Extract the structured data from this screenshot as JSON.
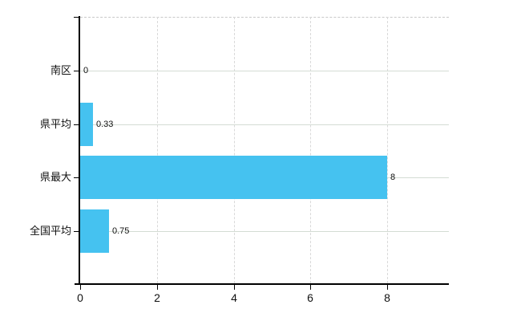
{
  "chart_data": {
    "type": "bar",
    "orientation": "horizontal",
    "title": "",
    "xlabel": "",
    "ylabel": "",
    "categories": [
      "南区",
      "県平均",
      "県最大",
      "全国平均"
    ],
    "values": [
      0,
      0.33,
      8,
      0.75
    ],
    "value_labels": [
      "0",
      "0.33",
      "8",
      "0.75"
    ],
    "x_ticks": [
      0,
      2,
      4,
      6,
      8
    ],
    "x_tick_labels": [
      "0",
      "2",
      "4",
      "6",
      "8"
    ],
    "xlim": [
      0,
      9.6
    ],
    "grid": {
      "vertical_style": "dashed",
      "horizontal_style": "solid",
      "top_border_style": "dashed"
    },
    "legend": "none",
    "colors": {
      "bar": "#45c2f0",
      "axis": "#000000",
      "gridline_horizontal": "#d4dcd4",
      "gridline_vertical": "#d9d9d9",
      "top_border": "#c9c9c9",
      "background": "#ffffff",
      "text": "#111111"
    }
  }
}
